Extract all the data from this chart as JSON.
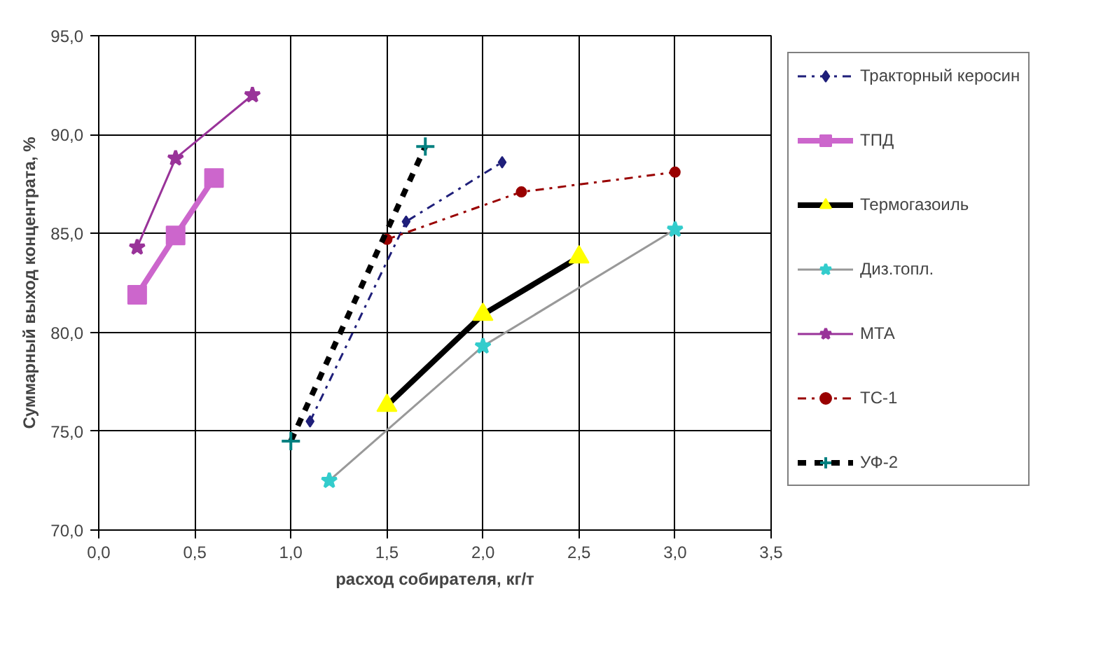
{
  "chart_data": {
    "type": "line",
    "xlabel": "расход собирателя, кг/т",
    "ylabel": "Суммарный выход концентрата, %",
    "xlim": [
      0,
      3.5
    ],
    "ylim": [
      70,
      95
    ],
    "xticks": [
      {
        "value": 0,
        "label": "0,0"
      },
      {
        "value": 0.5,
        "label": "0,5"
      },
      {
        "value": 1,
        "label": "1,0"
      },
      {
        "value": 1.5,
        "label": "1,5"
      },
      {
        "value": 2,
        "label": "2,0"
      },
      {
        "value": 2.5,
        "label": "2,5"
      },
      {
        "value": 3,
        "label": "3,0"
      },
      {
        "value": 3.5,
        "label": "3,5"
      }
    ],
    "yticks": [
      {
        "value": 70,
        "label": "70,0"
      },
      {
        "value": 75,
        "label": "75,0"
      },
      {
        "value": 80,
        "label": "80,0"
      },
      {
        "value": 85,
        "label": "85,0"
      },
      {
        "value": 90,
        "label": "90,0"
      },
      {
        "value": 95,
        "label": "95,0"
      }
    ],
    "grid": true,
    "legend": "right",
    "series": [
      {
        "name": "Тракторный керосин",
        "color": "#1f1f7a",
        "marker": "diamond",
        "line_style": "dashdot",
        "x": [
          1.1,
          1.6,
          2.1
        ],
        "values": [
          75.5,
          85.6,
          88.6
        ]
      },
      {
        "name": "ТПД",
        "color": "#cc66cc",
        "marker": "square",
        "line_style": "solid",
        "x": [
          0.2,
          0.4,
          0.6
        ],
        "values": [
          81.9,
          84.9,
          87.8
        ]
      },
      {
        "name": "Термогазоиль",
        "color": "#000000",
        "colors": [
          "#ffff00",
          "#ffff00",
          "#ffff00"
        ],
        "marker": "triangle",
        "line_style": "solid",
        "x": [
          1.5,
          2.0,
          2.5
        ],
        "values": [
          76.3,
          80.9,
          83.8
        ]
      },
      {
        "name": "Диз.топл.",
        "color": "#999999",
        "colors": [
          "#33cccc",
          "#33cccc",
          "#33cccc"
        ],
        "marker": "star",
        "line_style": "solid",
        "x": [
          1.2,
          2.0,
          3.0
        ],
        "values": [
          72.5,
          79.3,
          85.2
        ]
      },
      {
        "name": "МТА",
        "color": "#993399",
        "marker": "star",
        "line_style": "solid",
        "x": [
          0.2,
          0.4,
          0.8
        ],
        "values": [
          84.3,
          88.8,
          92.0
        ]
      },
      {
        "name": "ТС-1",
        "color": "#990000",
        "marker": "circle",
        "line_style": "dashdot",
        "x": [
          1.5,
          2.2,
          3.0
        ],
        "values": [
          84.7,
          87.1,
          88.1
        ]
      },
      {
        "name": "УФ-2",
        "color": "#000000",
        "colors": [
          "#008080",
          "#008080"
        ],
        "marker": "cross",
        "line_style": "dashed",
        "x": [
          1.0,
          1.7
        ],
        "values": [
          74.5,
          89.4
        ]
      }
    ]
  }
}
